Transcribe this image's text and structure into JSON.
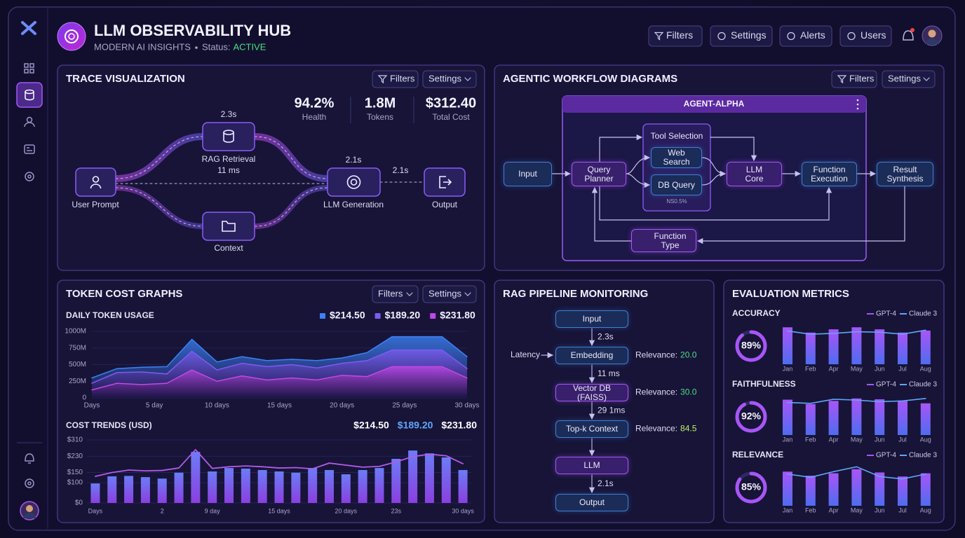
{
  "header": {
    "title": "LLM OBSERVABILITY HUB",
    "subtitle": "MODERN AI INSIGHTS",
    "status_label": "Status:",
    "status": "ACTIVE",
    "buttons": [
      "Filters",
      "Settings",
      "Alerts",
      "Users"
    ]
  },
  "trace": {
    "title": "TRACE VISUALIZATION",
    "filters": "Filters",
    "settings": "Settings",
    "stats": [
      {
        "value": "94.2%",
        "label": "Health"
      },
      {
        "value": "1.8M",
        "label": "Tokens"
      },
      {
        "value": "$312.40",
        "label": "Total Cost"
      }
    ],
    "nodes": [
      "User Prompt",
      "RAG Retrieval",
      "Context",
      "LLM Generation",
      "Output"
    ],
    "timings": [
      "2.3s",
      "11 ms",
      "2.1s",
      "2.1s"
    ]
  },
  "workflow": {
    "title": "AGENTIC WORKFLOW DIAGRAMS",
    "filters": "Filters",
    "settings": "Settings",
    "agent": "AGENT-ALPHA",
    "nodes": {
      "input": "Input",
      "planner": "Query Planner",
      "tools": "Tool Selection",
      "web": "Web Search",
      "db": "DB Query",
      "tool_note": "NS0.5%",
      "llm": "LLM Core",
      "exec": "Function Execution",
      "result": "Result Synthesis",
      "ftype": "Function Type"
    }
  },
  "token_cost": {
    "title": "TOKEN COST GRAPHS",
    "filters": "Filters",
    "settings": "Settings",
    "daily": {
      "type": "area",
      "title": "DAILY TOKEN USAGE",
      "legend": [
        {
          "label": "$214.50",
          "color": "#3b82f6"
        },
        {
          "label": "$189.20",
          "color": "#7c5cf0"
        },
        {
          "label": "$231.80",
          "color": "#c048e8"
        }
      ],
      "x": [
        0,
        2,
        4,
        6,
        8,
        10,
        12,
        14,
        16,
        18,
        20,
        22,
        24,
        26,
        28,
        30
      ],
      "xlim": [
        0,
        30
      ],
      "xticks": [
        {
          "value": 0,
          "label": "Days"
        },
        {
          "value": 5,
          "label": "5 day"
        },
        {
          "value": 10,
          "label": "10 days"
        },
        {
          "value": 15,
          "label": "15 days"
        },
        {
          "value": 20,
          "label": "20 days"
        },
        {
          "value": 25,
          "label": "25 days"
        },
        {
          "value": 30,
          "label": "30 days"
        }
      ],
      "ylim": [
        0,
        1000
      ],
      "yticks": [
        0,
        {
          "value": 250,
          "label": "250M"
        },
        {
          "value": 500,
          "label": "500M"
        },
        {
          "value": 750,
          "label": "750M"
        },
        {
          "value": 1000,
          "label": "1000M"
        }
      ],
      "series": [
        {
          "color": "#3b82f6",
          "values": [
            300,
            440,
            460,
            470,
            880,
            540,
            620,
            560,
            580,
            560,
            600,
            680,
            920,
            920,
            920,
            620
          ]
        },
        {
          "color": "#7c5cf0",
          "values": [
            220,
            380,
            390,
            360,
            700,
            420,
            520,
            470,
            500,
            450,
            520,
            560,
            720,
            720,
            720,
            440
          ]
        },
        {
          "color": "#c048e8",
          "values": [
            120,
            220,
            200,
            220,
            420,
            250,
            330,
            270,
            300,
            270,
            340,
            320,
            470,
            470,
            470,
            300
          ]
        }
      ]
    },
    "cost": {
      "type": "bar_line",
      "title": "COST TRENDS (USD)",
      "legend": [
        {
          "label": "$214.50",
          "color": "#ffffff"
        },
        {
          "label": "$189.20",
          "color": "#60a5fa"
        },
        {
          "label": "$231.80",
          "color": "#ffffff"
        }
      ],
      "categories": [
        "Days",
        null,
        null,
        null,
        "2",
        null,
        null,
        "9 day",
        null,
        null,
        null,
        "15 days",
        null,
        null,
        null,
        "20 days",
        null,
        null,
        "23s",
        null,
        null,
        null,
        "30 days"
      ],
      "ylim": [
        0,
        310
      ],
      "yticks": [
        {
          "value": 0,
          "label": "$0"
        },
        {
          "value": 100,
          "label": "$100"
        },
        {
          "value": 150,
          "label": "$150"
        },
        {
          "value": 230,
          "label": "$230"
        },
        {
          "value": 310,
          "label": "$310"
        }
      ],
      "bars": {
        "color": "#6b7cf6",
        "values": [
          96,
          131,
          133,
          127,
          120,
          149,
          251,
          155,
          172,
          169,
          162,
          155,
          149,
          172,
          162,
          141,
          162,
          172,
          217,
          258,
          244,
          224,
          162
        ]
      },
      "line": {
        "color": "#b15be8",
        "values": [
          131,
          150,
          162,
          158,
          160,
          172,
          262,
          170,
          178,
          182,
          178,
          172,
          174,
          168,
          196,
          186,
          176,
          180,
          202,
          228,
          240,
          232,
          193
        ]
      }
    }
  },
  "rag": {
    "title": "RAG PIPELINE MONITORING",
    "nodes": [
      "Input",
      "Embedding",
      "Vector DB (FAISS)",
      "Top-k Context",
      "LLM",
      "Output"
    ],
    "latencies": [
      "2.3s",
      "11 ms",
      "29 1ms",
      "2.1s"
    ],
    "latency_label": "Latency",
    "relevance_label": "Relevance:",
    "relevance": [
      "20.0",
      "30.0",
      "84.5"
    ]
  },
  "evaluation": {
    "title": "EVALUATION METRICS",
    "charts": [
      {
        "type": "bar_line",
        "title": "ACCURACY",
        "score": 89,
        "score_label": "89%",
        "categories": [
          "Jan",
          "Feb",
          "Apr",
          "May",
          "Jun",
          "Jul",
          "Aug"
        ],
        "ylim": [
          0,
          100
        ],
        "series": [
          {
            "name": "GPT-4",
            "color": "#a855f7",
            "values": [
              91,
              78,
              86,
              91,
              86,
              78,
              83
            ]
          },
          {
            "name": "Claude 3",
            "color": "#60a5fa",
            "values": [
              82,
              74,
              76,
              80,
              79,
              74,
              84
            ]
          }
        ]
      },
      {
        "type": "bar_line",
        "title": "FAITHFULNESS",
        "score": 92,
        "score_label": "92%",
        "categories": [
          "Jan",
          "Feb",
          "Apr",
          "May",
          "Jun",
          "Jul",
          "Aug"
        ],
        "ylim": [
          0,
          100
        ],
        "series": [
          {
            "name": "GPT-4",
            "color": "#a855f7",
            "values": [
              87,
              76,
              84,
              90,
              88,
              84,
              78
            ]
          },
          {
            "name": "Claude 3",
            "color": "#60a5fa",
            "values": [
              80,
              78,
              88,
              86,
              82,
              84,
              90
            ]
          }
        ]
      },
      {
        "type": "bar_line",
        "title": "RELEVANCE",
        "score": 85,
        "score_label": "85%",
        "categories": [
          "Jan",
          "Feb",
          "Apr",
          "May",
          "Jun",
          "Jul",
          "Aug"
        ],
        "ylim": [
          0,
          100
        ],
        "series": [
          {
            "name": "GPT-4",
            "color": "#a855f7",
            "values": [
              84,
              74,
              80,
              90,
              82,
              72,
              80
            ]
          },
          {
            "name": "Claude 3",
            "color": "#60a5fa",
            "values": [
              78,
              70,
              84,
              96,
              72,
              66,
              78
            ]
          }
        ]
      }
    ]
  }
}
